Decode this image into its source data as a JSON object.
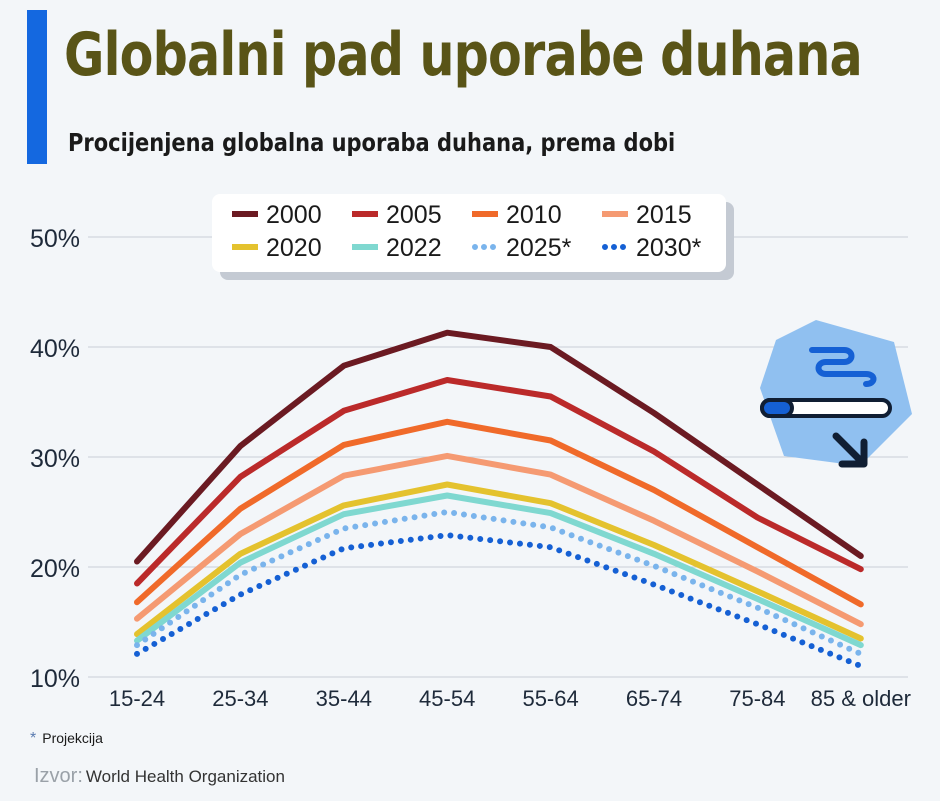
{
  "header": {
    "title": "Globalni pad uporabe duhana",
    "subtitle": "Procijenjena globalna uporaba duhana, prema dobi"
  },
  "footer": {
    "footnote_marker": "*",
    "footnote_text": "Projekcija",
    "source_label": "Izvor:",
    "source_value": "World Health Organization"
  },
  "colors": {
    "accent": "#1468e0",
    "title": "#595417",
    "badge": "#90c0f0"
  },
  "icons": {
    "badge": "cigarette-decline-icon"
  },
  "chart_data": {
    "type": "line",
    "title": "Globalni pad uporabe duhana",
    "subtitle": "Procijenjena globalna uporaba duhana, prema dobi",
    "xlabel": "",
    "ylabel": "",
    "categories": [
      "15-24",
      "25-34",
      "35-44",
      "45-54",
      "55-64",
      "65-74",
      "75-84",
      "85 & older"
    ],
    "ylim": [
      10,
      50
    ],
    "yticks": [
      10,
      20,
      30,
      40,
      50
    ],
    "ytick_labels": [
      "10%",
      "20%",
      "30%",
      "40%",
      "50%"
    ],
    "grid": true,
    "legend_position": "top",
    "series": [
      {
        "name": "2000",
        "color": "#6b1a22",
        "style": "solid",
        "values": [
          20.5,
          31.0,
          38.3,
          41.3,
          40.0,
          34.0,
          27.5,
          21.0
        ]
      },
      {
        "name": "2005",
        "color": "#bb2a2a",
        "style": "solid",
        "values": [
          18.5,
          28.2,
          34.2,
          37.0,
          35.5,
          30.5,
          24.5,
          19.8
        ]
      },
      {
        "name": "2010",
        "color": "#f06a2a",
        "style": "solid",
        "values": [
          16.8,
          25.3,
          31.1,
          33.2,
          31.5,
          27.0,
          21.8,
          16.6
        ]
      },
      {
        "name": "2015",
        "color": "#f59a72",
        "style": "solid",
        "values": [
          15.3,
          23.0,
          28.3,
          30.1,
          28.4,
          24.2,
          19.6,
          14.8
        ]
      },
      {
        "name": "2020",
        "color": "#e4c22e",
        "style": "solid",
        "values": [
          13.9,
          21.2,
          25.6,
          27.5,
          25.8,
          22.0,
          17.8,
          13.5
        ]
      },
      {
        "name": "2022",
        "color": "#7fd8d0",
        "style": "solid",
        "values": [
          13.3,
          20.4,
          24.8,
          26.5,
          24.9,
          21.2,
          17.1,
          12.9
        ]
      },
      {
        "name": "2025*",
        "color": "#7ab4ec",
        "style": "dotted",
        "values": [
          12.9,
          19.3,
          23.5,
          25.0,
          23.6,
          20.1,
          16.3,
          12.1
        ]
      },
      {
        "name": "2030*",
        "color": "#1560d4",
        "style": "dotted",
        "values": [
          12.1,
          17.5,
          21.7,
          22.9,
          21.8,
          18.4,
          14.8,
          11.0
        ]
      }
    ]
  }
}
